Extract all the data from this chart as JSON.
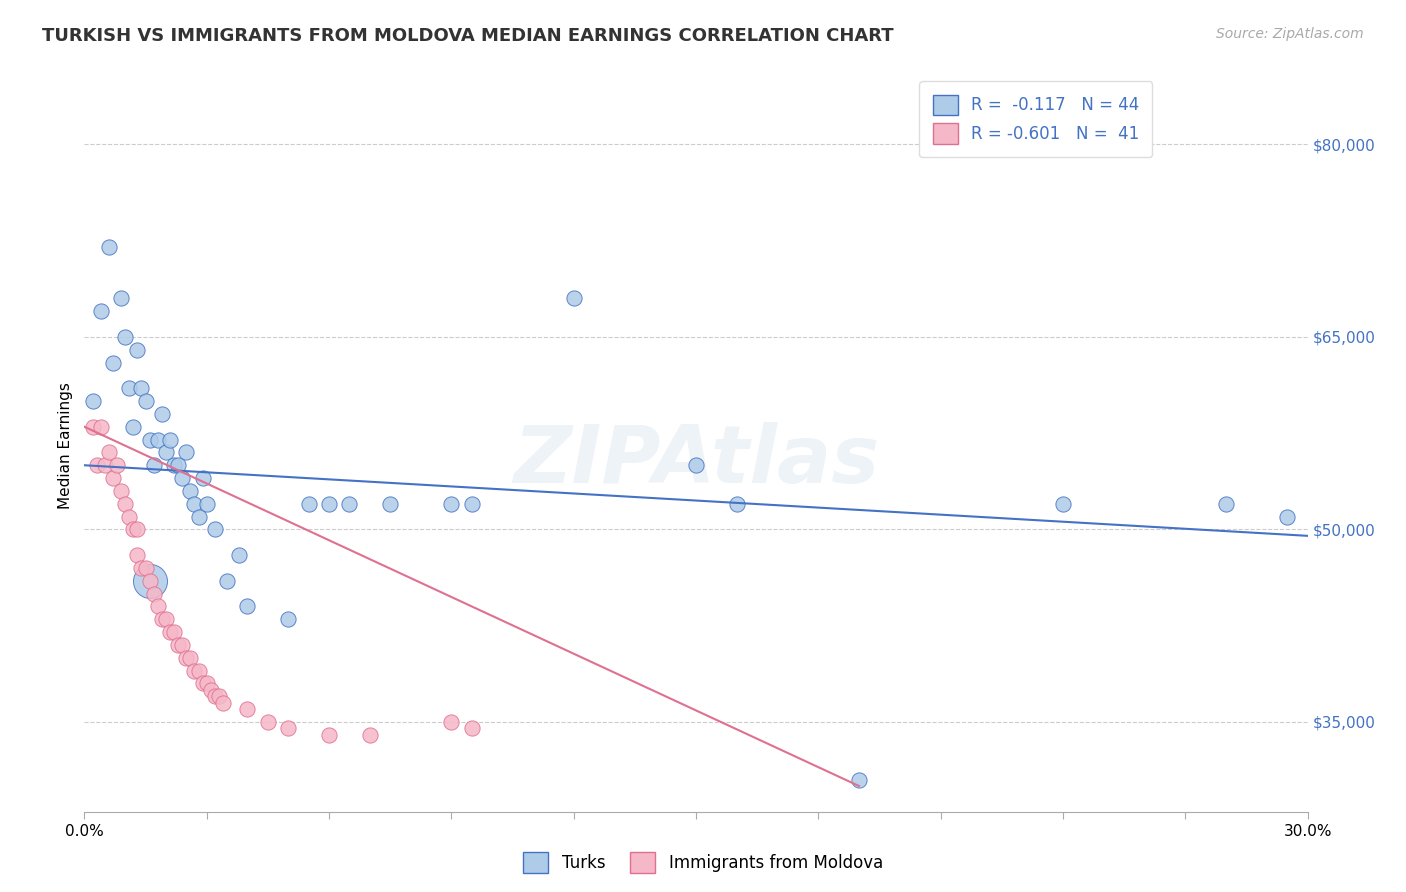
{
  "title": "TURKISH VS IMMIGRANTS FROM MOLDOVA MEDIAN EARNINGS CORRELATION CHART",
  "source": "Source: ZipAtlas.com",
  "ylabel": "Median Earnings",
  "yticks": [
    35000,
    50000,
    65000,
    80000
  ],
  "ytick_labels": [
    "$35,000",
    "$50,000",
    "$65,000",
    "$80,000"
  ],
  "xlim": [
    0.0,
    0.3
  ],
  "ylim": [
    28000,
    85000
  ],
  "blue_r": "-0.117",
  "blue_n": "44",
  "pink_r": "-0.601",
  "pink_n": "41",
  "legend_label_blue": "Turks",
  "legend_label_pink": "Immigrants from Moldova",
  "blue_color": "#aecce8",
  "pink_color": "#f5b8c8",
  "blue_line_color": "#4472c4",
  "pink_line_color": "#e07090",
  "watermark": "ZIPAtlas",
  "background_color": "#ffffff",
  "dot_size": 120,
  "large_dot_size": 600,
  "blue_dots": [
    [
      0.002,
      60000
    ],
    [
      0.004,
      67000
    ],
    [
      0.006,
      72000
    ],
    [
      0.007,
      63000
    ],
    [
      0.009,
      68000
    ],
    [
      0.01,
      65000
    ],
    [
      0.011,
      61000
    ],
    [
      0.012,
      58000
    ],
    [
      0.013,
      64000
    ],
    [
      0.014,
      61000
    ],
    [
      0.015,
      60000
    ],
    [
      0.016,
      57000
    ],
    [
      0.017,
      55000
    ],
    [
      0.018,
      57000
    ],
    [
      0.019,
      59000
    ],
    [
      0.02,
      56000
    ],
    [
      0.021,
      57000
    ],
    [
      0.022,
      55000
    ],
    [
      0.023,
      55000
    ],
    [
      0.024,
      54000
    ],
    [
      0.025,
      56000
    ],
    [
      0.026,
      53000
    ],
    [
      0.027,
      52000
    ],
    [
      0.028,
      51000
    ],
    [
      0.029,
      54000
    ],
    [
      0.03,
      52000
    ],
    [
      0.032,
      50000
    ],
    [
      0.035,
      46000
    ],
    [
      0.038,
      48000
    ],
    [
      0.04,
      44000
    ],
    [
      0.05,
      43000
    ],
    [
      0.055,
      52000
    ],
    [
      0.06,
      52000
    ],
    [
      0.065,
      52000
    ],
    [
      0.075,
      52000
    ],
    [
      0.09,
      52000
    ],
    [
      0.095,
      52000
    ],
    [
      0.12,
      68000
    ],
    [
      0.15,
      55000
    ],
    [
      0.16,
      52000
    ],
    [
      0.19,
      30500
    ],
    [
      0.24,
      52000
    ],
    [
      0.28,
      52000
    ],
    [
      0.295,
      51000
    ]
  ],
  "blue_large_dot": [
    0.016,
    46000
  ],
  "pink_dots": [
    [
      0.002,
      58000
    ],
    [
      0.003,
      55000
    ],
    [
      0.004,
      58000
    ],
    [
      0.005,
      55000
    ],
    [
      0.006,
      56000
    ],
    [
      0.007,
      54000
    ],
    [
      0.008,
      55000
    ],
    [
      0.009,
      53000
    ],
    [
      0.01,
      52000
    ],
    [
      0.011,
      51000
    ],
    [
      0.012,
      50000
    ],
    [
      0.013,
      50000
    ],
    [
      0.013,
      48000
    ],
    [
      0.014,
      47000
    ],
    [
      0.015,
      47000
    ],
    [
      0.016,
      46000
    ],
    [
      0.017,
      45000
    ],
    [
      0.018,
      44000
    ],
    [
      0.019,
      43000
    ],
    [
      0.02,
      43000
    ],
    [
      0.021,
      42000
    ],
    [
      0.022,
      42000
    ],
    [
      0.023,
      41000
    ],
    [
      0.024,
      41000
    ],
    [
      0.025,
      40000
    ],
    [
      0.026,
      40000
    ],
    [
      0.027,
      39000
    ],
    [
      0.028,
      39000
    ],
    [
      0.029,
      38000
    ],
    [
      0.03,
      38000
    ],
    [
      0.031,
      37500
    ],
    [
      0.032,
      37000
    ],
    [
      0.033,
      37000
    ],
    [
      0.034,
      36500
    ],
    [
      0.04,
      36000
    ],
    [
      0.045,
      35000
    ],
    [
      0.05,
      34500
    ],
    [
      0.06,
      34000
    ],
    [
      0.07,
      34000
    ],
    [
      0.09,
      35000
    ],
    [
      0.095,
      34500
    ]
  ],
  "blue_line": [
    0.0,
    0.3,
    55000,
    49500
  ],
  "pink_line": [
    0.0,
    0.19,
    58000,
    30000
  ],
  "xticks": [
    0.0,
    0.03,
    0.06,
    0.09,
    0.12,
    0.15,
    0.18,
    0.21,
    0.24,
    0.27,
    0.3
  ]
}
